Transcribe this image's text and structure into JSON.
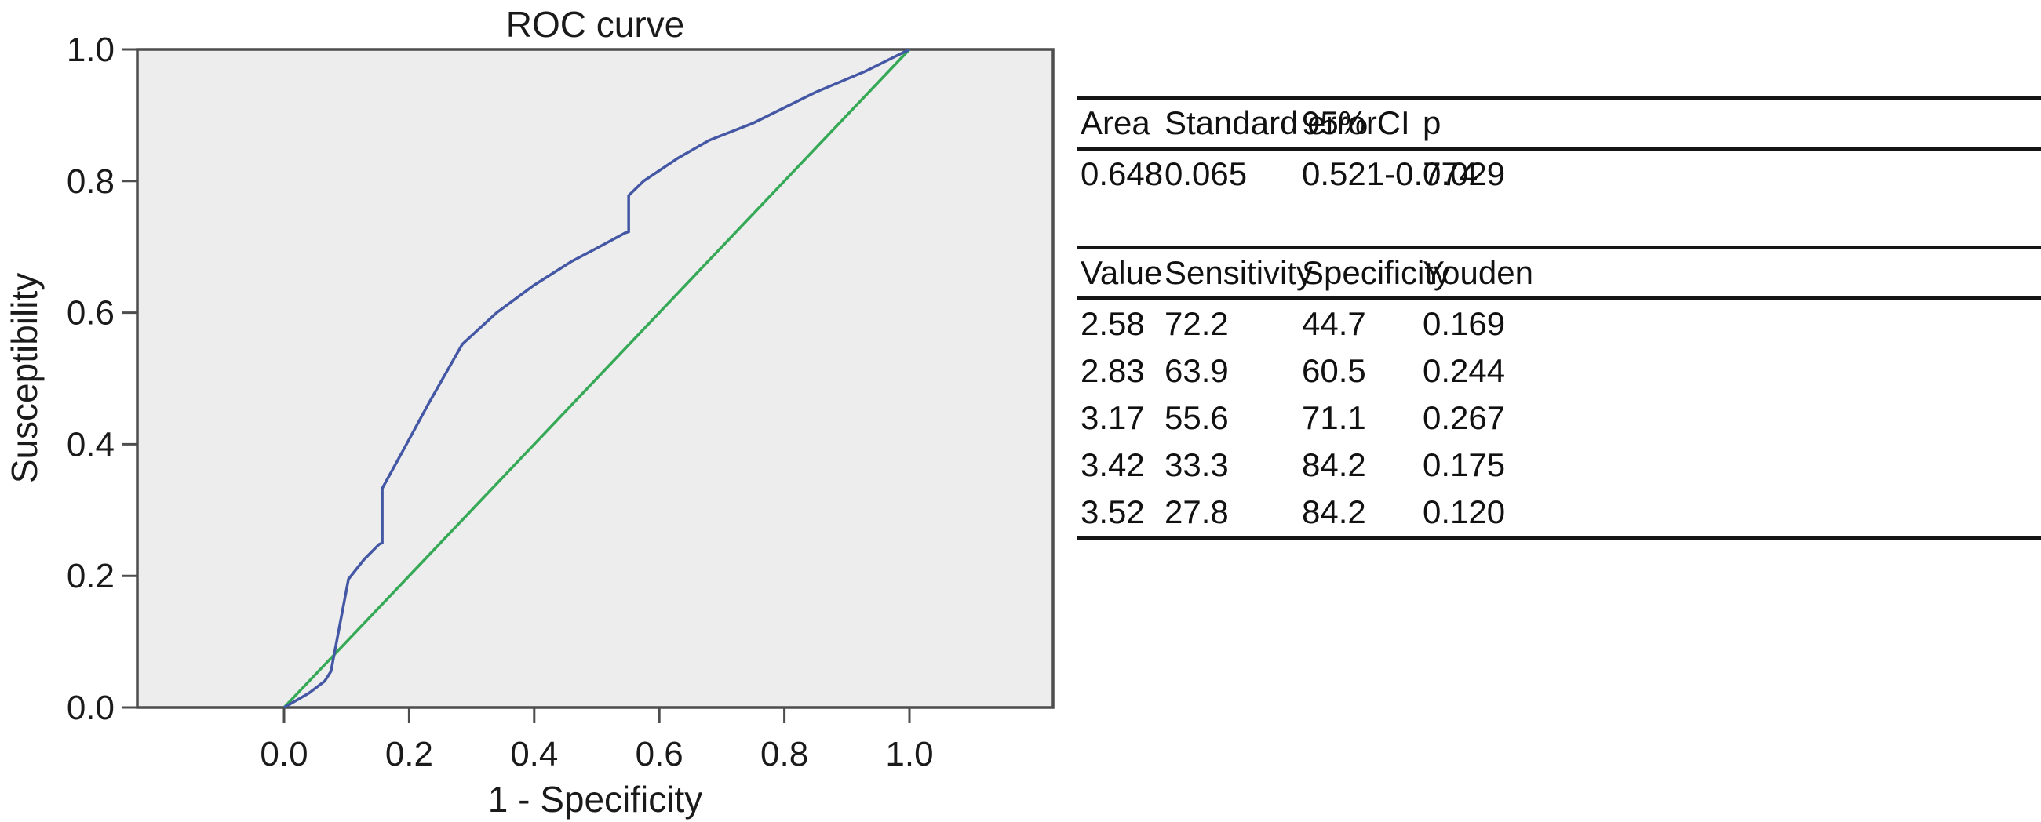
{
  "chart_data": {
    "type": "line",
    "title": "ROC curve",
    "xlabel": "1 - Specificity",
    "ylabel": "Susceptibility",
    "xticks": [
      0.0,
      0.2,
      0.4,
      0.6,
      0.8,
      1.0
    ],
    "yticks": [
      0.0,
      0.2,
      0.4,
      0.6,
      0.8,
      1.0
    ],
    "xlim": [
      -0.235,
      1.235
    ],
    "ylim": [
      0.0,
      1.0
    ],
    "grid": false,
    "legend": "none",
    "background": "#ededed",
    "frame_color": "#4d4d4d",
    "series": [
      {
        "name": "ROC curve",
        "color": "#4457a5",
        "points": [
          [
            0.0,
            0.0
          ],
          [
            0.04,
            0.022
          ],
          [
            0.065,
            0.04
          ],
          [
            0.075,
            0.055
          ],
          [
            0.078,
            0.07
          ],
          [
            0.103,
            0.195
          ],
          [
            0.128,
            0.225
          ],
          [
            0.152,
            0.248
          ],
          [
            0.157,
            0.25
          ],
          [
            0.157,
            0.333
          ],
          [
            0.19,
            0.39
          ],
          [
            0.23,
            0.46
          ],
          [
            0.285,
            0.552
          ],
          [
            0.34,
            0.6
          ],
          [
            0.4,
            0.642
          ],
          [
            0.46,
            0.678
          ],
          [
            0.5,
            0.698
          ],
          [
            0.545,
            0.721
          ],
          [
            0.551,
            0.723
          ],
          [
            0.551,
            0.778
          ],
          [
            0.575,
            0.8
          ],
          [
            0.63,
            0.835
          ],
          [
            0.68,
            0.862
          ],
          [
            0.75,
            0.888
          ],
          [
            0.85,
            0.935
          ],
          [
            0.93,
            0.967
          ],
          [
            1.0,
            1.0
          ]
        ]
      },
      {
        "name": "reference diagonal",
        "color": "#36a957",
        "points": [
          [
            0.0,
            0.0
          ],
          [
            1.0,
            1.0
          ]
        ]
      }
    ]
  },
  "auc_table": {
    "headers": [
      "Area",
      "Standard error",
      "95% CI",
      "p"
    ],
    "rows": [
      [
        "0.648",
        "0.065",
        "0.521-0.774",
        "0.029"
      ]
    ]
  },
  "cutoff_table": {
    "headers": [
      "Value",
      "Sensitivity",
      "Specificity",
      "Youden"
    ],
    "rows": [
      [
        "2.58",
        "72.2",
        "44.7",
        "0.169"
      ],
      [
        "2.83",
        "63.9",
        "60.5",
        "0.244"
      ],
      [
        "3.17",
        "55.6",
        "71.1",
        "0.267"
      ],
      [
        "3.42",
        "33.3",
        "84.2",
        "0.175"
      ],
      [
        "3.52",
        "27.8",
        "84.2",
        "0.120"
      ]
    ]
  }
}
